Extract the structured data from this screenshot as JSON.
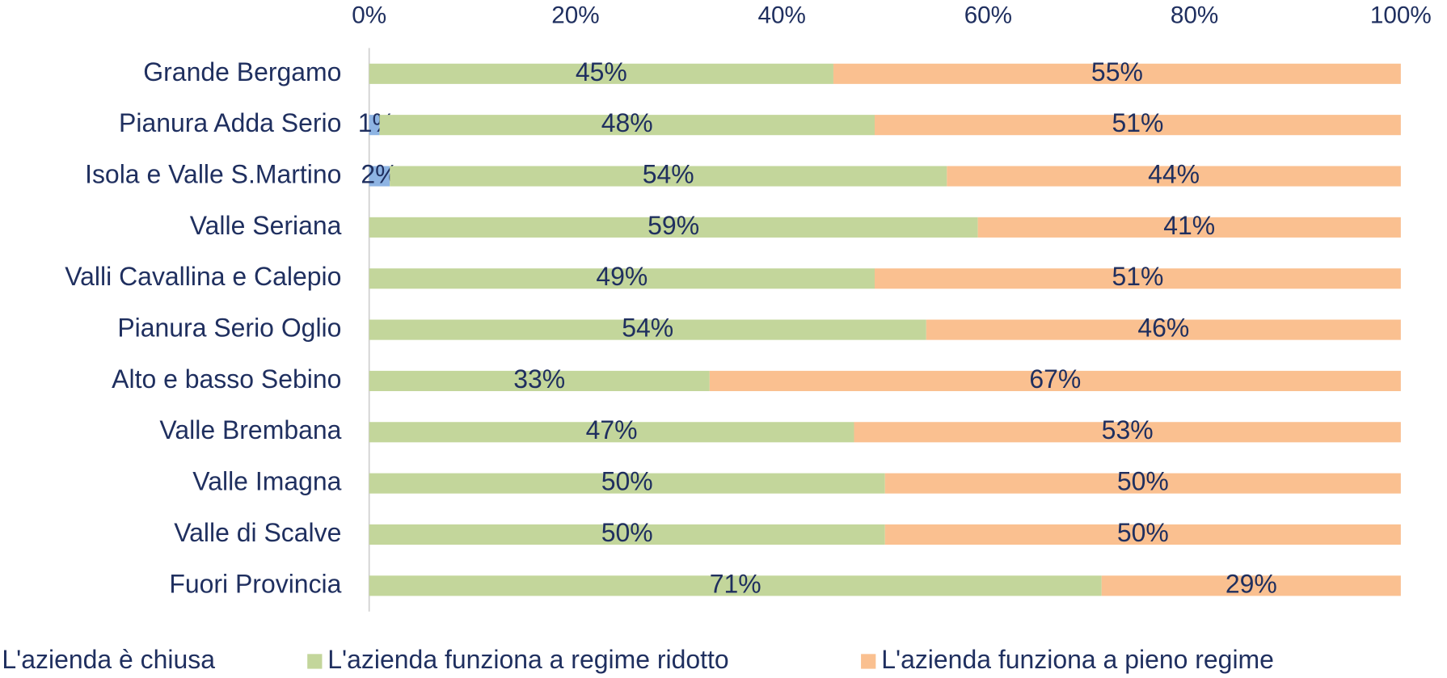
{
  "chart_data": {
    "type": "stacked_bar_horizontal_100",
    "categories": [
      "Grande Bergamo",
      "Pianura Adda Serio",
      "Isola e Valle S.Martino",
      "Valle Seriana",
      "Valli Cavallina e Calepio",
      "Pianura Serio Oglio",
      "Alto e basso Sebino",
      "Valle Brembana",
      "Valle Imagna",
      "Valle di Scalve",
      "Fuori Provincia"
    ],
    "series": [
      {
        "name": "L'azienda è chiusa",
        "color": "#8eb4e3",
        "values": [
          0,
          1,
          2,
          0,
          0,
          0,
          0,
          0,
          0,
          0,
          0
        ],
        "value_labels": [
          null,
          "1%",
          "2%",
          null,
          null,
          null,
          null,
          null,
          null,
          null,
          null
        ]
      },
      {
        "name": "L'azienda funziona a regime ridotto",
        "color": "#c3d69b",
        "values": [
          45,
          48,
          54,
          59,
          49,
          54,
          33,
          47,
          50,
          50,
          71
        ],
        "value_labels": [
          "45%",
          "48%",
          "54%",
          "59%",
          "49%",
          "54%",
          "33%",
          "47%",
          "50%",
          "50%",
          "71%"
        ]
      },
      {
        "name": "L'azienda funziona a pieno regime",
        "color": "#fac090",
        "values": [
          55,
          51,
          44,
          41,
          51,
          46,
          67,
          53,
          50,
          50,
          29
        ],
        "value_labels": [
          "55%",
          "51%",
          "44%",
          "41%",
          "51%",
          "46%",
          "67%",
          "53%",
          "50%",
          "50%",
          "29%"
        ]
      }
    ],
    "xlim": [
      0,
      100
    ],
    "xticks": [
      {
        "value": 0,
        "label": "0%"
      },
      {
        "value": 20,
        "label": "20%"
      },
      {
        "value": 40,
        "label": "40%"
      },
      {
        "value": 60,
        "label": "60%"
      },
      {
        "value": 80,
        "label": "80%"
      },
      {
        "value": 100,
        "label": "100%"
      }
    ],
    "legend": "bottom"
  }
}
